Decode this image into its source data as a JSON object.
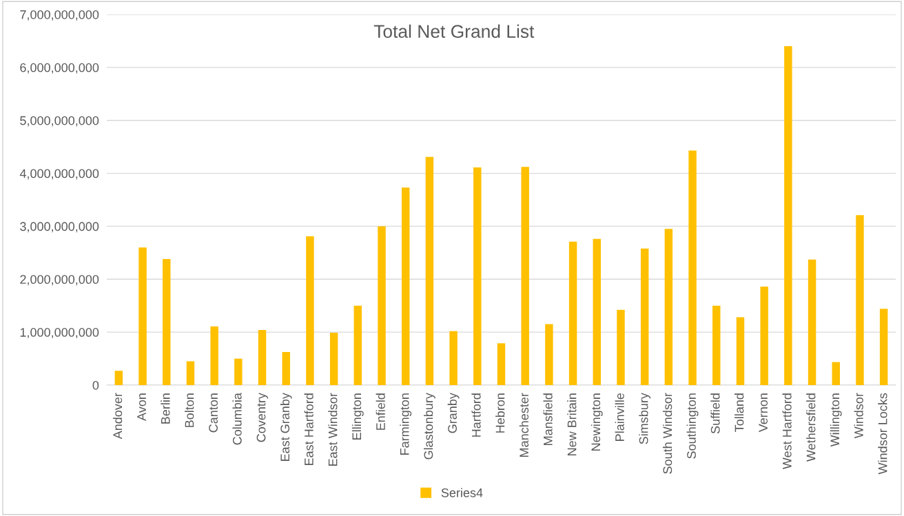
{
  "chart_data": {
    "type": "bar",
    "title": "Total Net Grand List",
    "categories": [
      "Andover",
      "Avon",
      "Berlin",
      "Bolton",
      "Canton",
      "Columbia",
      "Coventry",
      "East Granby",
      "East Hartford",
      "East Windsor",
      "Ellington",
      "Enfield",
      "Farmington",
      "Glastonbury",
      "Granby",
      "Hartford",
      "Hebron",
      "Manchester",
      "Mansfield",
      "New Britain",
      "Newington",
      "Plainville",
      "Simsbury",
      "South Windsor",
      "Southington",
      "Suffield",
      "Tolland",
      "Vernon",
      "West Hartford",
      "Wethersfield",
      "Willington",
      "Windsor",
      "Windsor Locks"
    ],
    "series": [
      {
        "name": "Series4",
        "color": "#ffc000",
        "values": [
          270000000,
          2600000000,
          2380000000,
          450000000,
          1110000000,
          500000000,
          1040000000,
          625000000,
          2810000000,
          990000000,
          1500000000,
          3000000000,
          3730000000,
          4310000000,
          1020000000,
          4110000000,
          790000000,
          4120000000,
          1150000000,
          2710000000,
          2760000000,
          1420000000,
          2580000000,
          2950000000,
          4430000000,
          1500000000,
          1280000000,
          1860000000,
          6400000000,
          2370000000,
          435000000,
          3210000000,
          1440000000
        ]
      }
    ],
    "ylim": [
      0,
      7000000000
    ],
    "yticks": [
      {
        "value": 0,
        "label": "0"
      },
      {
        "value": 1000000000,
        "label": "1,000,000,000"
      },
      {
        "value": 2000000000,
        "label": "2,000,000,000"
      },
      {
        "value": 3000000000,
        "label": "3,000,000,000"
      },
      {
        "value": 4000000000,
        "label": "4,000,000,000"
      },
      {
        "value": 5000000000,
        "label": "5,000,000,000"
      },
      {
        "value": 6000000000,
        "label": "6,000,000,000"
      },
      {
        "value": 7000000000,
        "label": "7,000,000,000"
      }
    ],
    "grid": "y",
    "legend": "bottom"
  }
}
